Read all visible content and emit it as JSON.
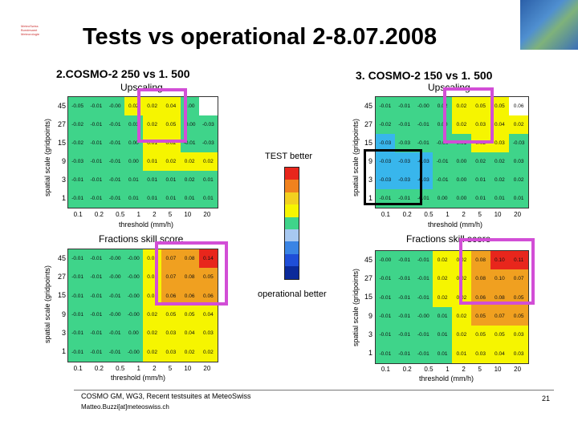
{
  "logo": {
    "lines": [
      "MeteoSwiss",
      "Bundesamt",
      "Meteorologie"
    ]
  },
  "title": "Tests vs operational 2-8.07.2008",
  "sections": {
    "left": "2.COSMO-2 250 vs 1. 500",
    "right": "3. COSMO-2 150 vs 1. 500"
  },
  "legend": {
    "top_label": "TEST better",
    "bottom_label": "operational better",
    "colors": [
      "#e8261c",
      "#f0821e",
      "#f2d01f",
      "#f6f500",
      "#3fd48a",
      "#a7c8f0",
      "#3a84e4",
      "#1f4ed8",
      "#0b2a9a"
    ]
  },
  "axes": {
    "ylabel": "spatial scale (gridpoints)",
    "xlabel": "threshold (mm/h)",
    "yticks": [
      "45",
      "27",
      "15",
      "9",
      "3",
      "1"
    ],
    "xticks": [
      "0.1",
      "0.2",
      "0.5",
      "1",
      "2",
      "5",
      "10",
      "20"
    ]
  },
  "colors": {
    "g": "#3fd48a",
    "y": "#f6f500",
    "o": "#f0a020",
    "r": "#e8261c",
    "w": "#ffffff",
    "c": "#38b6ec",
    "b": "#0d2f9f"
  },
  "panels": [
    {
      "title": "Upscaling",
      "cells": [
        [
          "-0.05",
          "-0.01",
          "-0.00",
          "0.02",
          "0.02",
          "0.04",
          "0.00",
          ""
        ],
        [
          "-0.02",
          "-0.01",
          "-0.01",
          "0.01",
          "0.02",
          "0.05",
          "-0.00",
          "-0.03"
        ],
        [
          "-0.02",
          "-0.01",
          "-0.01",
          "0.00",
          "0.01",
          "0.02",
          "-0.01",
          "-0.03"
        ],
        [
          "-0.03",
          "-0.01",
          "-0.01",
          "0.00",
          "0.01",
          "0.02",
          "0.02",
          "0.02"
        ],
        [
          "-0.01",
          "-0.01",
          "-0.01",
          "0.01",
          "0.01",
          "0.01",
          "0.02",
          "0.01"
        ],
        [
          "-0.01",
          "-0.01",
          "-0.01",
          "0.01",
          "0.01",
          "0.01",
          "0.01",
          "0.01"
        ]
      ],
      "colors": [
        [
          "g",
          "g",
          "g",
          "y",
          "y",
          "y",
          "g",
          "w"
        ],
        [
          "g",
          "g",
          "g",
          "g",
          "y",
          "y",
          "g",
          "g"
        ],
        [
          "g",
          "g",
          "g",
          "g",
          "y",
          "y",
          "g",
          "g"
        ],
        [
          "g",
          "g",
          "g",
          "g",
          "y",
          "y",
          "y",
          "y"
        ],
        [
          "g",
          "g",
          "g",
          "g",
          "g",
          "g",
          "g",
          "g"
        ],
        [
          "g",
          "g",
          "g",
          "g",
          "g",
          "g",
          "g",
          "g"
        ]
      ]
    },
    {
      "title": "Upscaling",
      "cells": [
        [
          "-0.01",
          "-0.01",
          "-0.00",
          "0.02",
          "0.02",
          "0.05",
          "0.05",
          "0.06"
        ],
        [
          "-0.02",
          "-0.01",
          "-0.01",
          "0.00",
          "0.02",
          "0.03",
          "0.04",
          "0.02"
        ],
        [
          "-0.03",
          "-0.03",
          "-0.01",
          "-0.00",
          "0.01",
          "0.02",
          "0.03",
          "-0.03"
        ],
        [
          "-0.03",
          "-0.03",
          "-0.03",
          "-0.01",
          "0.00",
          "0.02",
          "0.02",
          "0.03"
        ],
        [
          "-0.03",
          "-0.03",
          "-0.03",
          "-0.01",
          "0.00",
          "0.01",
          "0.02",
          "0.02"
        ],
        [
          "-0.01",
          "-0.01",
          "-0.01",
          "0.00",
          "0.00",
          "0.01",
          "0.01",
          "0.01"
        ]
      ],
      "colors": [
        [
          "g",
          "g",
          "g",
          "g",
          "y",
          "y",
          "y",
          "w"
        ],
        [
          "g",
          "g",
          "g",
          "g",
          "y",
          "y",
          "y",
          "y"
        ],
        [
          "c",
          "g",
          "g",
          "g",
          "g",
          "y",
          "y",
          "g"
        ],
        [
          "c",
          "c",
          "c",
          "g",
          "g",
          "g",
          "g",
          "g"
        ],
        [
          "c",
          "c",
          "c",
          "g",
          "g",
          "g",
          "g",
          "g"
        ],
        [
          "g",
          "g",
          "g",
          "g",
          "g",
          "g",
          "g",
          "g"
        ]
      ]
    },
    {
      "title": "Fractions skill score",
      "cells": [
        [
          "-0.01",
          "-0.01",
          "-0.00",
          "-0.00",
          "0.01",
          "0.07",
          "0.08",
          "0.14"
        ],
        [
          "-0.01",
          "-0.01",
          "-0.00",
          "-0.00",
          "0.01",
          "0.07",
          "0.08",
          "0.05"
        ],
        [
          "-0.01",
          "-0.01",
          "-0.01",
          "-0.00",
          "0.01",
          "0.06",
          "0.06",
          "0.06"
        ],
        [
          "-0.01",
          "-0.01",
          "-0.00",
          "-0.00",
          "0.02",
          "0.05",
          "0.05",
          "0.04"
        ],
        [
          "-0.01",
          "-0.01",
          "-0.01",
          "0.00",
          "0.02",
          "0.03",
          "0.04",
          "0.03"
        ],
        [
          "-0.01",
          "-0.01",
          "-0.01",
          "-0.00",
          "0.02",
          "0.03",
          "0.02",
          "0.02"
        ]
      ],
      "colors": [
        [
          "g",
          "g",
          "g",
          "g",
          "y",
          "o",
          "o",
          "r"
        ],
        [
          "g",
          "g",
          "g",
          "g",
          "y",
          "o",
          "o",
          "o"
        ],
        [
          "g",
          "g",
          "g",
          "g",
          "y",
          "o",
          "o",
          "o"
        ],
        [
          "g",
          "g",
          "g",
          "g",
          "y",
          "y",
          "y",
          "y"
        ],
        [
          "g",
          "g",
          "g",
          "g",
          "y",
          "y",
          "y",
          "y"
        ],
        [
          "g",
          "g",
          "g",
          "g",
          "y",
          "y",
          "y",
          "y"
        ]
      ]
    },
    {
      "title": "Fractions skill score",
      "cells": [
        [
          "-0.00",
          "-0.01",
          "-0.01",
          "0.02",
          "0.02",
          "0.08",
          "0.10",
          "0.11"
        ],
        [
          "-0.01",
          "-0.01",
          "-0.01",
          "0.02",
          "0.02",
          "0.08",
          "0.10",
          "0.07"
        ],
        [
          "-0.01",
          "-0.01",
          "-0.01",
          "0.02",
          "0.02",
          "0.06",
          "0.08",
          "0.05"
        ],
        [
          "-0.01",
          "-0.01",
          "-0.00",
          "0.01",
          "0.02",
          "0.05",
          "0.07",
          "0.05"
        ],
        [
          "-0.01",
          "-0.01",
          "-0.01",
          "0.01",
          "0.02",
          "0.05",
          "0.05",
          "0.03"
        ],
        [
          "-0.01",
          "-0.01",
          "-0.01",
          "0.01",
          "0.01",
          "0.03",
          "0.04",
          "0.03"
        ]
      ],
      "colors": [
        [
          "g",
          "g",
          "g",
          "y",
          "y",
          "o",
          "r",
          "r"
        ],
        [
          "g",
          "g",
          "g",
          "y",
          "y",
          "o",
          "o",
          "o"
        ],
        [
          "g",
          "g",
          "g",
          "y",
          "y",
          "o",
          "o",
          "o"
        ],
        [
          "g",
          "g",
          "g",
          "g",
          "y",
          "o",
          "o",
          "o"
        ],
        [
          "g",
          "g",
          "g",
          "g",
          "y",
          "y",
          "y",
          "y"
        ],
        [
          "g",
          "g",
          "g",
          "g",
          "y",
          "y",
          "y",
          "y"
        ]
      ]
    }
  ],
  "footer": {
    "line1": "COSMO GM, WG3, Recent testsuites at MeteoSwiss",
    "line2": "Matteo.Buzzi[at]meteoswiss.ch",
    "page": "21"
  }
}
